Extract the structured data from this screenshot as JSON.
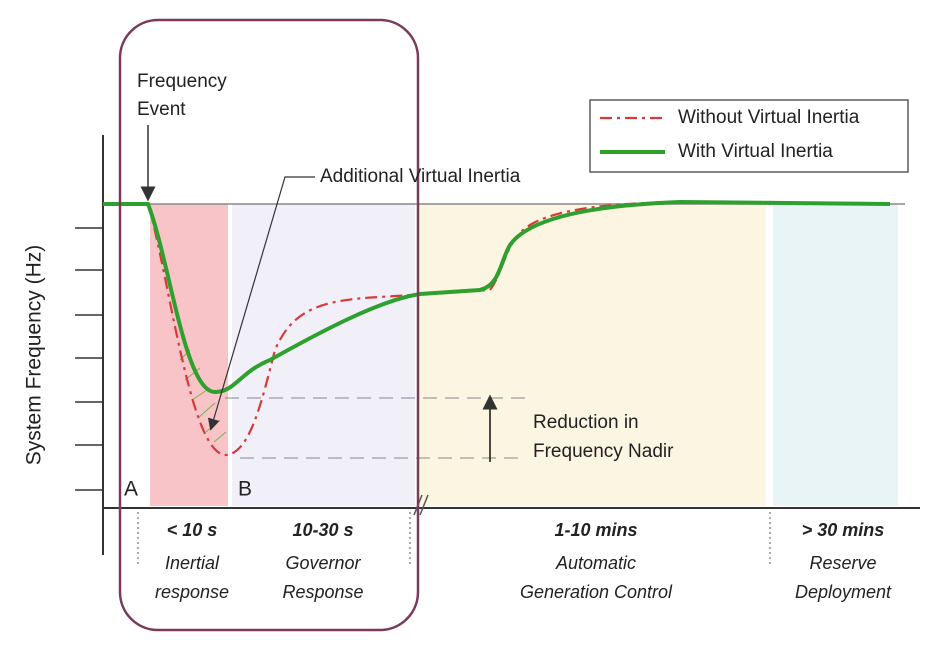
{
  "y_axis_label": "System Frequency (Hz)",
  "annotations": {
    "frequency_event": [
      "Frequency",
      "Event"
    ],
    "additional_virtual_inertia": "Additional Virtual Inertia",
    "point_a": "A",
    "point_b": "B",
    "nadir_reduction": [
      "Reduction in",
      "Frequency Nadir"
    ]
  },
  "legend": [
    {
      "label": "Without Virtual Inertia"
    },
    {
      "label": "With Virtual Inertia"
    }
  ],
  "phases": [
    {
      "duration": "< 10 s",
      "description": [
        "Inertial",
        "response"
      ]
    },
    {
      "duration": "10-30 s",
      "description": [
        "Governor",
        "Response"
      ]
    },
    {
      "duration": "1-10 mins",
      "description": [
        "Automatic",
        "Generation Control"
      ]
    },
    {
      "duration": "> 30 mins",
      "description": [
        "Reserve",
        "Deployment"
      ]
    }
  ]
}
